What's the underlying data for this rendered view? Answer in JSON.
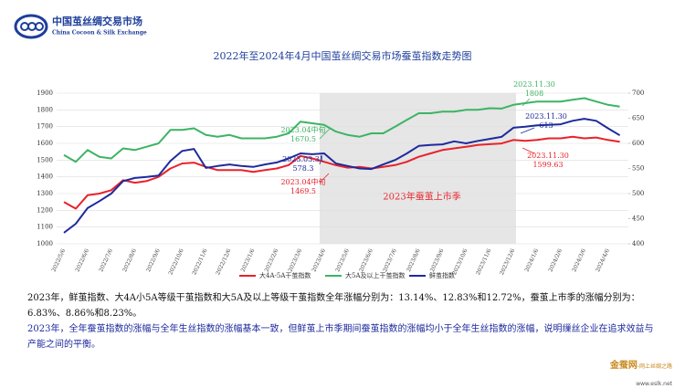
{
  "header": {
    "name_cn": "中国茧丝绸交易市场",
    "name_en": "China Cocoon & Silk Exchange"
  },
  "chart_data": {
    "type": "line",
    "title": "2022年至2024年4月中国茧丝绸交易市场蚕茧指数走势图",
    "categories": [
      "2022/5/6",
      null,
      "2022/6/6",
      null,
      "2022/7/6",
      null,
      "2022/8/6",
      null,
      "2022/9/6",
      null,
      "2022/10/6",
      null,
      "2022/11/6",
      null,
      "2022/12/6",
      null,
      "2023/1/6",
      null,
      "2023/2/6",
      null,
      "2023/3/6",
      null,
      "2023/4/6",
      null,
      "2023/5/6",
      null,
      "2023/6/6",
      null,
      "2023/7/6",
      null,
      "2023/8/6",
      null,
      "2023/9/6",
      null,
      "2023/10/6",
      null,
      "2023/11/6",
      null,
      "2023/12/6",
      null,
      "2024/1/6",
      null,
      "2024/2/6",
      null,
      "2024/3/6",
      null,
      "2024/4/6",
      null
    ],
    "series": [
      {
        "name": "大4A-5A干茧指数",
        "color": "#e8222a",
        "axis": "y",
        "values": [
          1250,
          1210,
          1290,
          1300,
          1320,
          1380,
          1365,
          1375,
          1400,
          1450,
          1480,
          1485,
          1460,
          1440,
          1440,
          1440,
          1430,
          1440,
          1450,
          1470,
          1525,
          1510,
          1490,
          1469.5,
          1455,
          1460,
          1450,
          1460,
          1470,
          1490,
          1520,
          1540,
          1560,
          1570,
          1580,
          1590,
          1595,
          1599.63,
          1620,
          1615,
          1620,
          1630,
          1630,
          1640,
          1630,
          1635,
          1620,
          1610
        ]
      },
      {
        "name": "大5A及以上干茧指数",
        "color": "#3cb464",
        "axis": "y",
        "values": [
          1530,
          1490,
          1560,
          1520,
          1510,
          1570,
          1560,
          1580,
          1600,
          1680,
          1680,
          1690,
          1650,
          1640,
          1650,
          1630,
          1630,
          1630,
          1640,
          1660,
          1730,
          1720,
          1710,
          1670.5,
          1650,
          1640,
          1660,
          1660,
          1700,
          1740,
          1780,
          1780,
          1790,
          1790,
          1800,
          1800,
          1810,
          1808,
          1830,
          1840,
          1850,
          1850,
          1850,
          1860,
          1870,
          1850,
          1830,
          1820
        ]
      },
      {
        "name": "鲜茧指数",
        "color": "#1e2a9c",
        "axis": "y2",
        "values": [
          422,
          440,
          471,
          485,
          500,
          525,
          531,
          533,
          536,
          565,
          585,
          589,
          551,
          555,
          558,
          555,
          553,
          558,
          562,
          570,
          580,
          578.3,
          580,
          560,
          555,
          550,
          549,
          558,
          567,
          580,
          595,
          597,
          598,
          604,
          600,
          605,
          609,
          613,
          631,
          633,
          636,
          637,
          638,
          645,
          649,
          645,
          630,
          616
        ]
      }
    ],
    "ylim": [
      1000,
      1900
    ],
    "yticks": [
      1000,
      1100,
      1200,
      1300,
      1400,
      1500,
      1600,
      1700,
      1800,
      1900
    ],
    "y2lim": [
      400,
      700
    ],
    "y2ticks": [
      400,
      450,
      500,
      550,
      600,
      650,
      700
    ],
    "grid": true,
    "shade_label": "2023年蚕茧上市季",
    "annotations": [
      {
        "label": "2023.04中旬",
        "value": 1670.5,
        "color": "#3cb464"
      },
      {
        "label": "2023.03.31",
        "value": 578.3,
        "color": "#1e2a9c"
      },
      {
        "label": "2023.04中旬",
        "value": 1469.5,
        "color": "#e8222a"
      },
      {
        "label": "2023.11.30",
        "value": 1808,
        "color": "#3cb464"
      },
      {
        "label": "2023.11.30",
        "value": 613,
        "color": "#1e2a9c"
      },
      {
        "label": "2023.11.30",
        "value": 1599.63,
        "color": "#e8222a"
      }
    ]
  },
  "notes": [
    "2023年，鲜茧指数、大4A小5A等级干茧指数和大5A及以上等级干茧指数全年涨幅分别为：13.14%、12.83%和12.72%，蚕茧上市季的涨幅分别为：6.83%、8.86%和8.23%。",
    "2023年，全年蚕茧指数的涨幅与全年生丝指数的涨幅基本一致，但鲜茧上市季期间蚕茧指数的涨幅均小于全年生丝指数的涨幅，说明缫丝企业在追求效益与产能之间的平衡。"
  ],
  "watermark": {
    "name": "金蚕网",
    "slogan": "-网上丝绸之路",
    "url": "www.eslk.net"
  }
}
